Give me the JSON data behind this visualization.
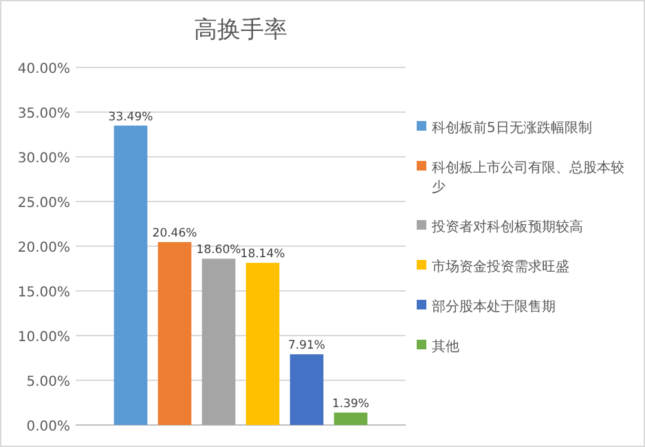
{
  "chart_data": {
    "type": "bar",
    "title": "高换手率",
    "categories": [
      null
    ],
    "series": [
      {
        "name": "科创板前5日无涨跌幅限制",
        "color": "#5b9bd5",
        "values": [
          33.49
        ],
        "value_labels": [
          "33.49%"
        ]
      },
      {
        "name": "科创板上市公司有限、总股本较少",
        "color": "#ed7d31",
        "values": [
          20.46
        ],
        "value_labels": [
          "20.46%"
        ]
      },
      {
        "name": "投资者对科创板预期较高",
        "color": "#a5a5a5",
        "values": [
          18.6
        ],
        "value_labels": [
          "18.60%"
        ]
      },
      {
        "name": "市场资金投资需求旺盛",
        "color": "#ffc000",
        "values": [
          18.14
        ],
        "value_labels": [
          "18.14%"
        ]
      },
      {
        "name": "部分股本处于限售期",
        "color": "#4472c4",
        "values": [
          7.91
        ],
        "value_labels": [
          "7.91%"
        ]
      },
      {
        "name": "其他",
        "color": "#70ad47",
        "values": [
          1.39
        ],
        "value_labels": [
          "1.39%"
        ]
      }
    ],
    "ylim": [
      0,
      40
    ],
    "yticks": [
      {
        "value": 0,
        "label": "0.00%"
      },
      {
        "value": 5,
        "label": "5.00%"
      },
      {
        "value": 10,
        "label": "10.00%"
      },
      {
        "value": 15,
        "label": "15.00%"
      },
      {
        "value": 20,
        "label": "20.00%"
      },
      {
        "value": 25,
        "label": "25.00%"
      },
      {
        "value": 30,
        "label": "30.00%"
      },
      {
        "value": 35,
        "label": "35.00%"
      },
      {
        "value": 40,
        "label": "40.00%"
      }
    ],
    "grid": "y",
    "legend": "right"
  }
}
